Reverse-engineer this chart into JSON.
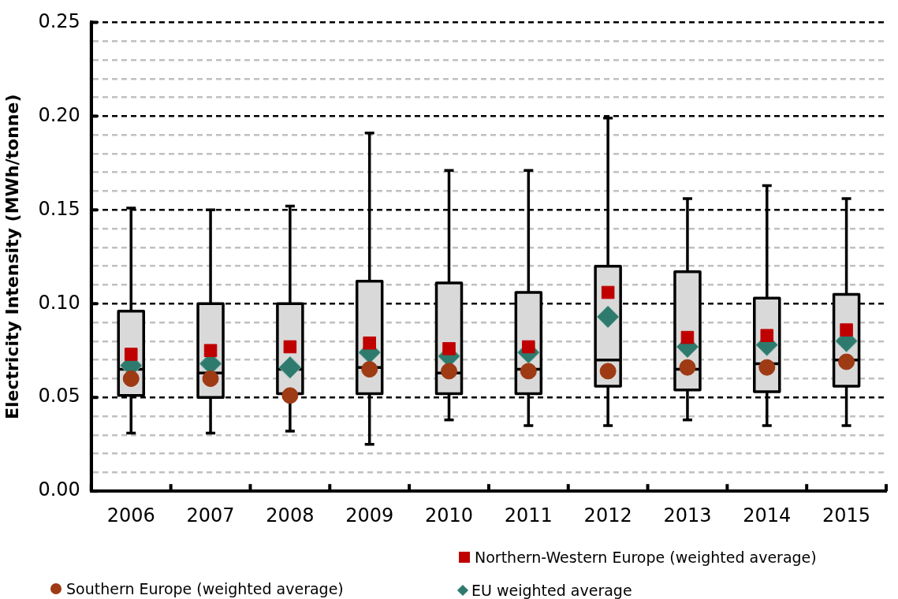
{
  "chart_data": {
    "type": "box",
    "ylabel": "Electricity Intensity (MWh/tonne)",
    "categories": [
      "2006",
      "2007",
      "2008",
      "2009",
      "2010",
      "2011",
      "2012",
      "2013",
      "2014",
      "2015"
    ],
    "boxes": [
      {
        "low": 0.031,
        "q1": 0.051,
        "median": 0.065,
        "q3": 0.096,
        "high": 0.151
      },
      {
        "low": 0.031,
        "q1": 0.05,
        "median": 0.063,
        "q3": 0.1,
        "high": 0.15
      },
      {
        "low": 0.032,
        "q1": 0.052,
        "median": 0.065,
        "q3": 0.1,
        "high": 0.152
      },
      {
        "low": 0.025,
        "q1": 0.052,
        "median": 0.066,
        "q3": 0.112,
        "high": 0.191
      },
      {
        "low": 0.038,
        "q1": 0.052,
        "median": 0.063,
        "q3": 0.111,
        "high": 0.171
      },
      {
        "low": 0.035,
        "q1": 0.052,
        "median": 0.065,
        "q3": 0.106,
        "high": 0.171
      },
      {
        "low": 0.035,
        "q1": 0.056,
        "median": 0.07,
        "q3": 0.12,
        "high": 0.199
      },
      {
        "low": 0.038,
        "q1": 0.054,
        "median": 0.065,
        "q3": 0.117,
        "high": 0.156
      },
      {
        "low": 0.035,
        "q1": 0.053,
        "median": 0.068,
        "q3": 0.103,
        "high": 0.163
      },
      {
        "low": 0.035,
        "q1": 0.056,
        "median": 0.07,
        "q3": 0.105,
        "high": 0.156
      }
    ],
    "series": [
      {
        "type": "scatter",
        "name": "Northern-Western Europe (weighted average)",
        "color": "#c00000",
        "marker": "square",
        "values": [
          0.073,
          0.075,
          0.077,
          0.079,
          0.076,
          0.077,
          0.106,
          0.082,
          0.083,
          0.086
        ]
      },
      {
        "type": "scatter",
        "name": "Southern Europe (weighted average)",
        "color": "#9e3a14",
        "marker": "circle",
        "values": [
          0.06,
          0.06,
          0.051,
          0.065,
          0.064,
          0.064,
          0.064,
          0.066,
          0.066,
          0.069
        ]
      },
      {
        "type": "scatter",
        "name": "EU weighted average",
        "color": "#2e7b6e",
        "marker": "diamond",
        "values": [
          0.067,
          0.068,
          0.066,
          0.074,
          0.072,
          0.074,
          0.093,
          0.077,
          0.078,
          0.08
        ]
      }
    ],
    "ylim": [
      0,
      0.25
    ],
    "yticks": [
      {
        "value": 0,
        "label": "0.00"
      },
      {
        "value": 0.01,
        "label": null
      },
      {
        "value": 0.02,
        "label": null
      },
      {
        "value": 0.03,
        "label": null
      },
      {
        "value": 0.04,
        "label": null
      },
      {
        "value": 0.05,
        "label": "0.05"
      },
      {
        "value": 0.06,
        "label": null
      },
      {
        "value": 0.07,
        "label": null
      },
      {
        "value": 0.08,
        "label": null
      },
      {
        "value": 0.09,
        "label": null
      },
      {
        "value": 0.1,
        "label": "0.10"
      },
      {
        "value": 0.11,
        "label": null
      },
      {
        "value": 0.12,
        "label": null
      },
      {
        "value": 0.13,
        "label": null
      },
      {
        "value": 0.14,
        "label": null
      },
      {
        "value": 0.15,
        "label": "0.15"
      },
      {
        "value": 0.16,
        "label": null
      },
      {
        "value": 0.17,
        "label": null
      },
      {
        "value": 0.18,
        "label": null
      },
      {
        "value": 0.19,
        "label": null
      },
      {
        "value": 0.2,
        "label": "0.20"
      },
      {
        "value": 0.21,
        "label": null
      },
      {
        "value": 0.22,
        "label": null
      },
      {
        "value": 0.23,
        "label": null
      },
      {
        "value": 0.24,
        "label": null
      },
      {
        "value": 0.25,
        "label": "0.25"
      }
    ],
    "grid": "y",
    "legend": "bottom"
  }
}
